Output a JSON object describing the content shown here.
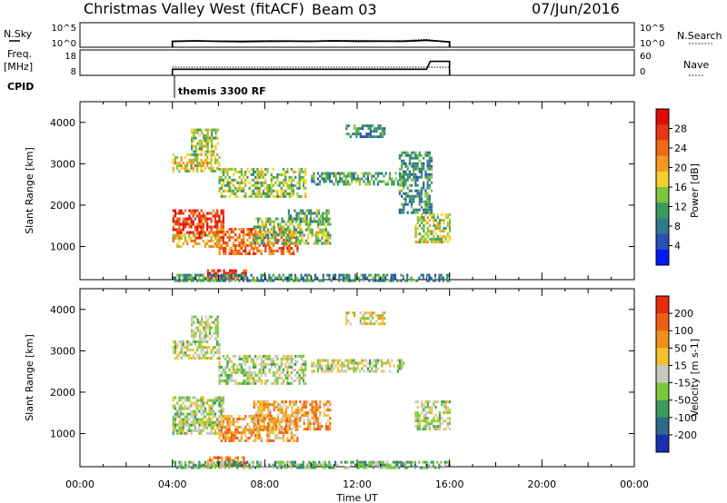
{
  "header": {
    "station": "Christmas Valley West (fitACF)",
    "beam": "Beam 03",
    "date": "07/Jun/2016"
  },
  "left_labels": {
    "nsky": "N.Sky",
    "freq": "Freq.",
    "freq_unit": "[MHz]",
    "cpid": "CPID"
  },
  "right_labels": {
    "nsearch": "N.Search",
    "nave": "Nave"
  },
  "cpid_text": "themis 3300 RF",
  "colors": {
    "line": "#000000",
    "bg": "#ffffff"
  },
  "chart_data": [
    {
      "type": "line",
      "name": "noise-panel",
      "left_ticks": [
        "10^5",
        "10^0"
      ],
      "right_ticks": [
        "10^5",
        "10^0"
      ],
      "x": [
        "04:00",
        "05:00",
        "06:00",
        "07:00",
        "08:00",
        "09:00",
        "10:00",
        "11:00",
        "12:00",
        "13:00",
        "14:00",
        "15:00",
        "16:00"
      ],
      "series": [
        {
          "values": [
            1.2,
            1.3,
            1.2,
            1.15,
            1.2,
            1.25,
            1.2,
            1.3,
            1.2,
            1.25,
            1.2,
            1.4,
            1.1
          ]
        },
        {
          "values": [
            1.1,
            1.25,
            1.3,
            1.3,
            1.35,
            1.3,
            1.3,
            1.35,
            1.4,
            1.3,
            1.35,
            1.6,
            1.0
          ]
        }
      ],
      "ylim": [
        0,
        5
      ],
      "xlim": [
        0,
        24
      ]
    },
    {
      "type": "line",
      "name": "freq-panel",
      "left_ticks": [
        "18",
        "8"
      ],
      "right_ticks": [
        "60",
        "0"
      ],
      "x": [
        "04:00",
        "15:00",
        "15:10",
        "16:00"
      ],
      "series": [
        {
          "values": [
            10.4,
            10.4,
            13.5,
            13.5
          ]
        },
        {
          "values": [
            11.2,
            11.2,
            11.2,
            11.2
          ]
        }
      ],
      "ylim": [
        8,
        18
      ],
      "xlim": [
        0,
        24
      ]
    },
    {
      "type": "heatmap",
      "name": "power-panel",
      "ylabel": "Slant Range [km]",
      "yticks": [
        "1000",
        "2000",
        "3000",
        "4000"
      ],
      "ylim": [
        200,
        4500
      ],
      "xlim": [
        0,
        24
      ],
      "colorbar": {
        "label": "Power [dB]",
        "ticks": [
          "28",
          "24",
          "20",
          "16",
          "12",
          "8",
          "4"
        ],
        "colors": [
          "#0018ff",
          "#2a4fb5",
          "#2e7a8a",
          "#3c9a5a",
          "#7ec43c",
          "#f5d02a",
          "#f39a1e",
          "#ee6a15",
          "#e83514",
          "#e00a0a"
        ]
      },
      "regions": [
        {
          "t0": 4.0,
          "t1": 6.2,
          "r0": 1200,
          "r1": 1900,
          "level": 0.85
        },
        {
          "t0": 4.0,
          "t1": 6.0,
          "r0": 1000,
          "r1": 1300,
          "level": 0.6
        },
        {
          "t0": 6.0,
          "t1": 9.4,
          "r0": 800,
          "r1": 1450,
          "level": 0.75
        },
        {
          "t0": 7.5,
          "t1": 10.8,
          "r0": 1100,
          "r1": 1700,
          "level": 0.45
        },
        {
          "t0": 9.0,
          "t1": 10.8,
          "r0": 1600,
          "r1": 1900,
          "level": 0.35
        },
        {
          "t0": 4.0,
          "t1": 6.0,
          "r0": 2850,
          "r1": 3250,
          "level": 0.55
        },
        {
          "t0": 4.8,
          "t1": 6.0,
          "r0": 3300,
          "r1": 3850,
          "level": 0.45
        },
        {
          "t0": 6.0,
          "t1": 9.8,
          "r0": 2200,
          "r1": 2900,
          "level": 0.45
        },
        {
          "t0": 10.0,
          "t1": 14.0,
          "r0": 2500,
          "r1": 2800,
          "level": 0.35
        },
        {
          "t0": 11.5,
          "t1": 13.2,
          "r0": 3650,
          "r1": 3950,
          "level": 0.3
        },
        {
          "t0": 14.5,
          "t1": 16.0,
          "r0": 1100,
          "r1": 1800,
          "level": 0.5
        },
        {
          "t0": 13.8,
          "t1": 15.2,
          "r0": 1800,
          "r1": 3300,
          "level": 0.3
        },
        {
          "t0": 5.5,
          "t1": 7.2,
          "r0": 200,
          "r1": 450,
          "level": 0.85
        },
        {
          "t0": 4.0,
          "t1": 16.0,
          "r0": 200,
          "r1": 340,
          "level": 0.3
        }
      ]
    },
    {
      "type": "heatmap",
      "name": "velocity-panel",
      "xlabel": "Time UT",
      "ylabel": "Slant Range [km]",
      "xticks": [
        "00:00",
        "04:00",
        "08:00",
        "12:00",
        "16:00",
        "20:00",
        "00:00"
      ],
      "yticks": [
        "1000",
        "2000",
        "3000",
        "4000"
      ],
      "ylim": [
        200,
        4500
      ],
      "xlim": [
        0,
        24
      ],
      "colorbar": {
        "label": "Velocity [m s-1]",
        "ticks": [
          "200",
          "100",
          "50",
          "15",
          "-15",
          "-50",
          "-100",
          "-200"
        ],
        "colors": [
          "#1a2eb0",
          "#2f6a8c",
          "#3d9a5a",
          "#7cc83c",
          "#c8c8c0",
          "#f5c030",
          "#f0901a",
          "#ec6014",
          "#e82a10"
        ]
      },
      "regions": [
        {
          "t0": 4.0,
          "t1": 6.2,
          "r0": 1200,
          "r1": 1900,
          "level": 0.45
        },
        {
          "t0": 4.0,
          "t1": 6.0,
          "r0": 1000,
          "r1": 1300,
          "level": 0.45
        },
        {
          "t0": 6.0,
          "t1": 9.4,
          "r0": 800,
          "r1": 1450,
          "level": 0.7
        },
        {
          "t0": 7.5,
          "t1": 10.8,
          "r0": 1100,
          "r1": 1800,
          "level": 0.68
        },
        {
          "t0": 4.0,
          "t1": 6.0,
          "r0": 2850,
          "r1": 3250,
          "level": 0.47
        },
        {
          "t0": 4.8,
          "t1": 6.0,
          "r0": 3300,
          "r1": 3850,
          "level": 0.47
        },
        {
          "t0": 6.0,
          "t1": 9.8,
          "r0": 2200,
          "r1": 2900,
          "level": 0.46
        },
        {
          "t0": 10.0,
          "t1": 14.0,
          "r0": 2500,
          "r1": 2800,
          "level": 0.46
        },
        {
          "t0": 11.5,
          "t1": 13.2,
          "r0": 3650,
          "r1": 3950,
          "level": 0.55
        },
        {
          "t0": 14.5,
          "t1": 16.0,
          "r0": 1100,
          "r1": 1800,
          "level": 0.46
        },
        {
          "t0": 5.5,
          "t1": 7.2,
          "r0": 200,
          "r1": 450,
          "level": 0.78
        },
        {
          "t0": 4.0,
          "t1": 16.0,
          "r0": 200,
          "r1": 340,
          "level": 0.35
        }
      ]
    }
  ]
}
